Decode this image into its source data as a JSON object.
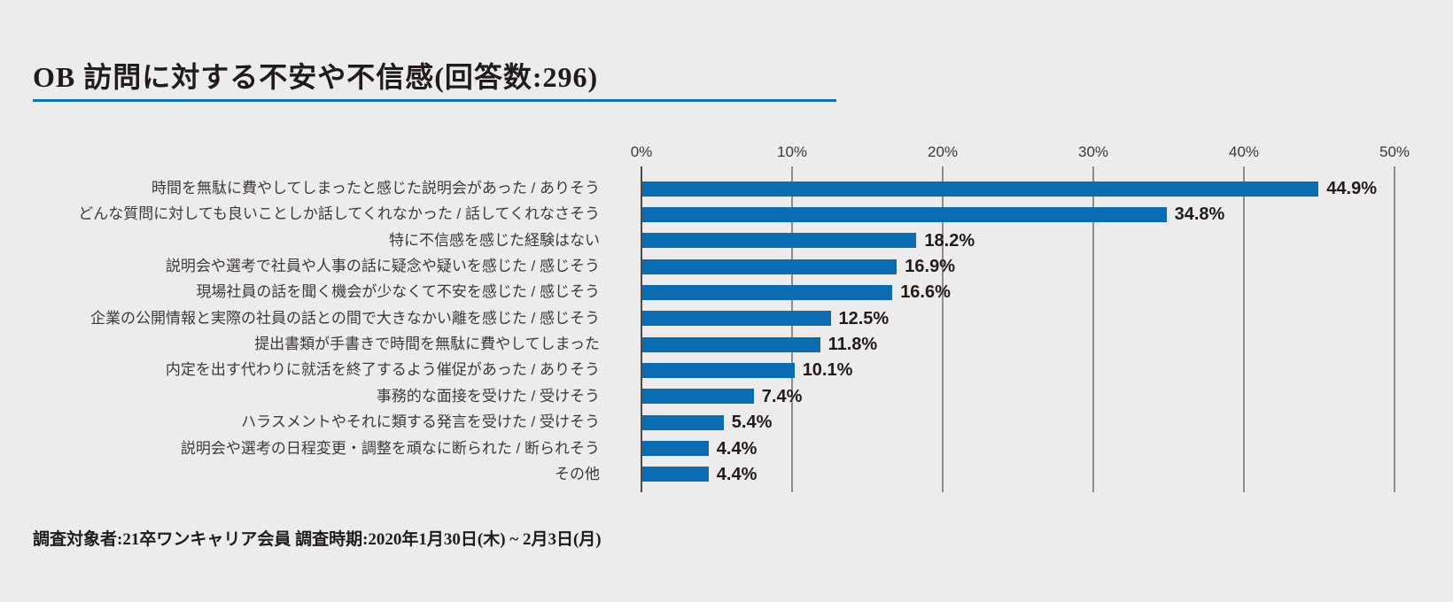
{
  "title": {
    "text": "OB 訪問に対する不安や不信感(回答数:296)"
  },
  "footer": {
    "text": "調査対象者:21卒ワンキャリア会員 調査時期:2020年1月30日(木) ~ 2月3日(月)"
  },
  "chart_data": {
    "type": "bar",
    "orientation": "horizontal",
    "title": "OB 訪問に対する不安や不信感(回答数:296)",
    "response_count": 296,
    "categories": [
      "時間を無駄に費やしてしまったと感じた説明会があった / ありそう",
      "どんな質問に対しても良いことしか話してくれなかった / 話してくれなさそう",
      "特に不信感を感じた経験はない",
      "説明会や選考で社員や人事の話に疑念や疑いを感じた / 感じそう",
      "現場社員の話を聞く機会が少なくて不安を感じた / 感じそう",
      "企業の公開情報と実際の社員の話との間で大きなかい離を感じた / 感じそう",
      "提出書類が手書きで時間を無駄に費やしてしまった",
      "内定を出す代わりに就活を終了するよう催促があった / ありそう",
      "事務的な面接を受けた / 受けそう",
      "ハラスメントやそれに類する発言を受けた / 受けそう",
      "説明会や選考の日程変更・調整を頑なに断られた / 断られそう",
      "その他"
    ],
    "values": [
      44.9,
      34.8,
      18.2,
      16.9,
      16.6,
      12.5,
      11.8,
      10.1,
      7.4,
      5.4,
      4.4,
      4.4
    ],
    "value_labels": [
      "44.9%",
      "34.8%",
      "18.2%",
      "16.9%",
      "16.6%",
      "12.5%",
      "11.8%",
      "10.1%",
      "7.4%",
      "5.4%",
      "4.4%",
      "4.4%"
    ],
    "axis_ticks": [
      "0%",
      "10%",
      "20%",
      "30%",
      "40%",
      "50%"
    ],
    "xlim": [
      0,
      50
    ],
    "grid": true,
    "legend": "none",
    "bar_color": "#0c6cb2"
  },
  "colors": {
    "background": "#ececec",
    "bar": "#0c6cb2",
    "title_underline": "#1273b9",
    "gridline": "#918c8a",
    "axis_line": "#4e4a49",
    "text_dark": "#211c1a",
    "text_label": "#3e3938",
    "text_value": "#241b18"
  }
}
